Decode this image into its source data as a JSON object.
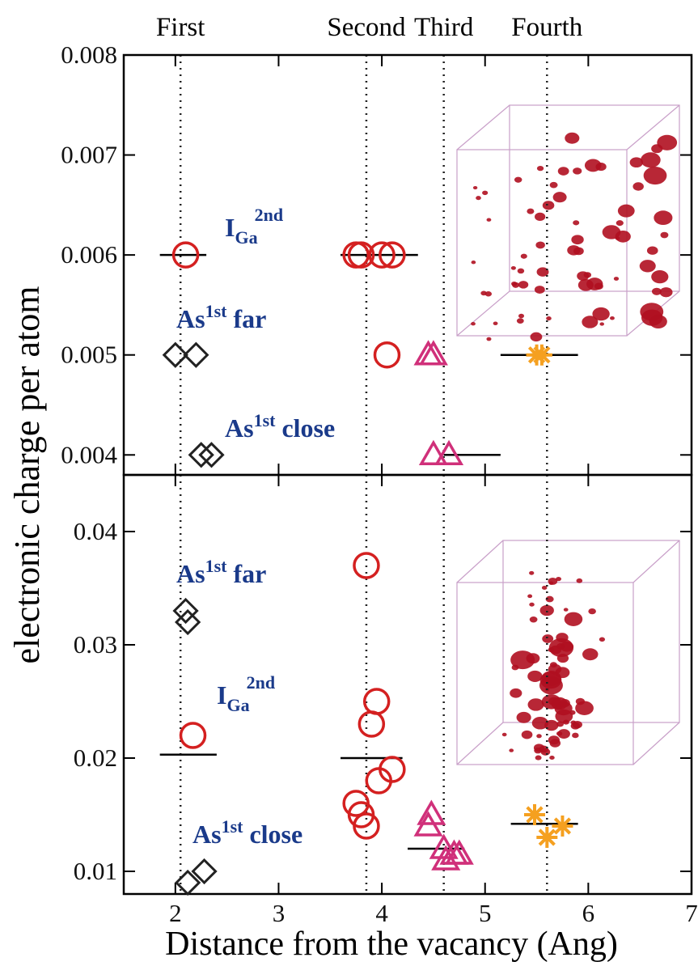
{
  "chart_data": [
    {
      "type": "scatter",
      "ylabel": "electronic charge  per atom",
      "shells": {
        "labels": [
          "First",
          "Second",
          "Third",
          "Fourth"
        ],
        "x": [
          2.05,
          3.85,
          4.6,
          5.6
        ]
      },
      "xlim": [
        1.5,
        7
      ],
      "xticks": [
        2,
        3,
        4,
        5,
        6,
        7
      ],
      "ylim": [
        0.0038,
        0.008
      ],
      "yticks": [
        0.004,
        0.005,
        0.006,
        0.007,
        0.008
      ],
      "series": [
        {
          "marker": "diamond",
          "color": "#222222",
          "x": [
            2.0,
            2.2,
            2.25,
            2.35
          ],
          "values": [
            0.005,
            0.005,
            0.004,
            0.004
          ]
        },
        {
          "marker": "circle",
          "color": "#d42020",
          "x": [
            2.1,
            3.75,
            3.8,
            4.0,
            4.1,
            4.05
          ],
          "values": [
            0.006,
            0.006,
            0.006,
            0.006,
            0.006,
            0.005
          ]
        },
        {
          "marker": "triangle",
          "color": "#d0307a",
          "x": [
            4.45,
            4.5,
            4.5,
            4.65
          ],
          "values": [
            0.005,
            0.005,
            0.004,
            0.004
          ]
        },
        {
          "marker": "star",
          "color": "#f5a020",
          "x": [
            5.5,
            5.55
          ],
          "values": [
            0.005,
            0.005
          ]
        }
      ],
      "mean_lines": [
        {
          "x": [
            1.85,
            2.3
          ],
          "y": 0.006
        },
        {
          "x": [
            3.6,
            4.35
          ],
          "y": 0.006
        },
        {
          "x": [
            4.6,
            5.15
          ],
          "y": 0.004
        },
        {
          "x": [
            5.15,
            5.9
          ],
          "y": 0.005
        }
      ],
      "annotations": [
        {
          "base": "I",
          "sub": "Ga",
          "sup": "2nd"
        },
        {
          "base": "As",
          "sup": "1st",
          "tail": "far"
        },
        {
          "base": "As",
          "sup": "1st",
          "tail": "close"
        }
      ]
    },
    {
      "type": "scatter",
      "xlabel": "Distance from the vacancy (Ang)",
      "xlim": [
        1.5,
        7
      ],
      "xticks": [
        2,
        3,
        4,
        5,
        6,
        7
      ],
      "ylim": [
        0.008,
        0.045
      ],
      "yticks": [
        0.01,
        0.02,
        0.03,
        0.04
      ],
      "series": [
        {
          "marker": "diamond",
          "color": "#222222",
          "x": [
            2.1,
            2.12,
            2.12,
            2.28
          ],
          "values": [
            0.033,
            0.032,
            0.009,
            0.01
          ]
        },
        {
          "marker": "circle",
          "color": "#d42020",
          "x": [
            2.17,
            3.85,
            3.95,
            3.9,
            4.1,
            3.97,
            3.75,
            3.8,
            3.85
          ],
          "values": [
            0.022,
            0.037,
            0.025,
            0.023,
            0.019,
            0.018,
            0.016,
            0.015,
            0.014
          ]
        },
        {
          "marker": "triangle",
          "color": "#d0307a",
          "x": [
            4.48,
            4.45,
            4.6,
            4.7,
            4.75,
            4.62
          ],
          "values": [
            0.015,
            0.014,
            0.012,
            0.0115,
            0.0115,
            0.011
          ]
        },
        {
          "marker": "star",
          "color": "#f5a020",
          "x": [
            5.48,
            5.6,
            5.75
          ],
          "values": [
            0.015,
            0.013,
            0.014
          ]
        }
      ],
      "mean_lines": [
        {
          "x": [
            1.85,
            2.4
          ],
          "y": 0.0203
        },
        {
          "x": [
            3.6,
            4.2
          ],
          "y": 0.02
        },
        {
          "x": [
            4.25,
            4.8
          ],
          "y": 0.012
        },
        {
          "x": [
            5.25,
            5.9
          ],
          "y": 0.0142
        }
      ],
      "annotations": [
        {
          "base": "As",
          "sup": "1st",
          "tail": "far"
        },
        {
          "base": "I",
          "sub": "Ga",
          "sup": "2nd"
        },
        {
          "base": "As",
          "sup": "1st",
          "tail": "close"
        }
      ]
    }
  ]
}
